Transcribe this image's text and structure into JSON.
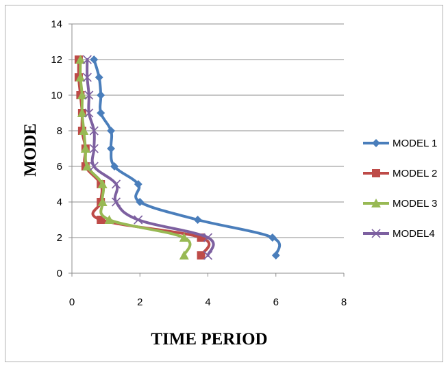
{
  "chart_data": {
    "type": "scatter",
    "title": "",
    "xlabel": "TIME PERIOD",
    "ylabel": "MODE",
    "xlim": [
      0,
      8
    ],
    "ylim": [
      0,
      14
    ],
    "xticks": [
      "0",
      "2",
      "4",
      "6",
      "8"
    ],
    "yticks": [
      "0",
      "2",
      "4",
      "6",
      "8",
      "10",
      "12",
      "14"
    ],
    "grid": "horizontal",
    "legend_position": "right",
    "series": [
      {
        "name": "MODEL 1",
        "color": "#4a7ebb",
        "marker": "diamond",
        "points": [
          [
            6.0,
            1
          ],
          [
            5.9,
            2
          ],
          [
            3.7,
            3
          ],
          [
            2.0,
            4
          ],
          [
            1.95,
            5
          ],
          [
            1.25,
            6
          ],
          [
            1.15,
            7
          ],
          [
            1.15,
            8
          ],
          [
            0.85,
            9
          ],
          [
            0.85,
            10
          ],
          [
            0.8,
            11
          ],
          [
            0.65,
            12
          ]
        ]
      },
      {
        "name": "MODEL 2",
        "color": "#be4b48",
        "marker": "square",
        "points": [
          [
            3.8,
            1
          ],
          [
            3.8,
            2
          ],
          [
            0.85,
            3
          ],
          [
            0.85,
            4
          ],
          [
            0.85,
            5
          ],
          [
            0.4,
            6
          ],
          [
            0.4,
            7
          ],
          [
            0.3,
            8
          ],
          [
            0.3,
            9
          ],
          [
            0.25,
            10
          ],
          [
            0.2,
            11
          ],
          [
            0.2,
            12
          ]
        ]
      },
      {
        "name": "MODEL 3",
        "color": "#98b954",
        "marker": "triangle",
        "points": [
          [
            3.3,
            1
          ],
          [
            3.3,
            2
          ],
          [
            1.1,
            3
          ],
          [
            0.9,
            4
          ],
          [
            0.9,
            5
          ],
          [
            0.45,
            6
          ],
          [
            0.4,
            7
          ],
          [
            0.35,
            8
          ],
          [
            0.3,
            9
          ],
          [
            0.3,
            10
          ],
          [
            0.25,
            11
          ],
          [
            0.25,
            12
          ]
        ]
      },
      {
        "name": "MODEL4",
        "color": "#7d60a0",
        "marker": "x",
        "points": [
          [
            4.0,
            1
          ],
          [
            4.0,
            2
          ],
          [
            1.95,
            3
          ],
          [
            1.3,
            4
          ],
          [
            1.3,
            5
          ],
          [
            0.65,
            6
          ],
          [
            0.65,
            7
          ],
          [
            0.65,
            8
          ],
          [
            0.5,
            9
          ],
          [
            0.5,
            10
          ],
          [
            0.45,
            11
          ],
          [
            0.45,
            12
          ]
        ]
      }
    ]
  }
}
